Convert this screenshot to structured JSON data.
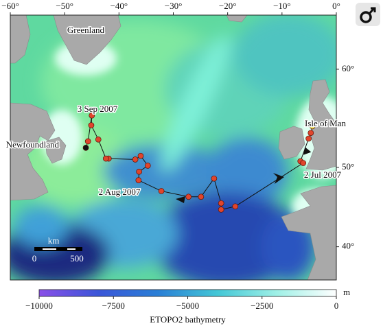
{
  "map": {
    "xlim": [
      -60,
      0
    ],
    "ylim": [
      35.3,
      64.5
    ],
    "xticks": [
      {
        "value": -60,
        "label": "−60°"
      },
      {
        "value": -50,
        "label": "−50°"
      },
      {
        "value": -40,
        "label": "−40°"
      },
      {
        "value": -30,
        "label": "−30°"
      },
      {
        "value": -20,
        "label": "−20°"
      },
      {
        "value": -10,
        "label": "−10°"
      },
      {
        "value": 0,
        "label": "0°"
      }
    ],
    "yticks": [
      {
        "value": 40,
        "label": "40°"
      },
      {
        "value": 50,
        "label": "50°"
      },
      {
        "value": 60,
        "label": "60°"
      }
    ],
    "place_labels": [
      "Greenland",
      "Newfoundland",
      "Isle of Man"
    ],
    "date_labels": [
      "3 Sep 2007",
      "2 Aug 2007",
      "2 Jul 2007"
    ],
    "track": {
      "color": "#e0452c",
      "line_color": "#111111",
      "start_color": "#f2e33a",
      "end_color": "#111111",
      "points": [
        [
          -4.4,
          54.5
        ],
        [
          -4.7,
          53.8
        ],
        [
          -5.1,
          53.2
        ],
        [
          -6.6,
          50.7
        ],
        [
          -6.1,
          50.5
        ],
        [
          -18.6,
          45.3
        ],
        [
          -21.2,
          44.9
        ],
        [
          -21.2,
          45.7
        ],
        [
          -22.5,
          48.7
        ],
        [
          -24.9,
          46.5
        ],
        [
          -27.2,
          46.5
        ],
        [
          -32.2,
          47.2
        ],
        [
          -36.4,
          48.5
        ],
        [
          -36.3,
          49.5
        ],
        [
          -34.7,
          50.2
        ],
        [
          -36.0,
          51.3
        ],
        [
          -37.0,
          50.9
        ],
        [
          -41.9,
          51.0
        ],
        [
          -42.4,
          51.0
        ],
        [
          -43.8,
          53.1
        ],
        [
          -45.1,
          54.6
        ],
        [
          -45.0,
          55.6
        ],
        [
          -45.7,
          52.9
        ],
        [
          -46.1,
          52.2
        ]
      ]
    },
    "scale_bar": {
      "unit": "km",
      "ticks": [
        0,
        500
      ]
    },
    "colorbar": {
      "title": "ETOPO2 bathymetry",
      "unit": "m",
      "lim": [
        -10000,
        0
      ],
      "colormap": [
        "#8a4fe8",
        "#3a56d8",
        "#2a7fd6",
        "#43c7d6",
        "#9ff0e6",
        "#ffffff"
      ],
      "ticks": [
        {
          "value": -10000,
          "label": "−10000"
        },
        {
          "value": -7500,
          "label": "−7500"
        },
        {
          "value": -5000,
          "label": "−5000"
        },
        {
          "value": -2500,
          "label": "−2500"
        },
        {
          "value": 0,
          "label": "0"
        }
      ]
    }
  }
}
